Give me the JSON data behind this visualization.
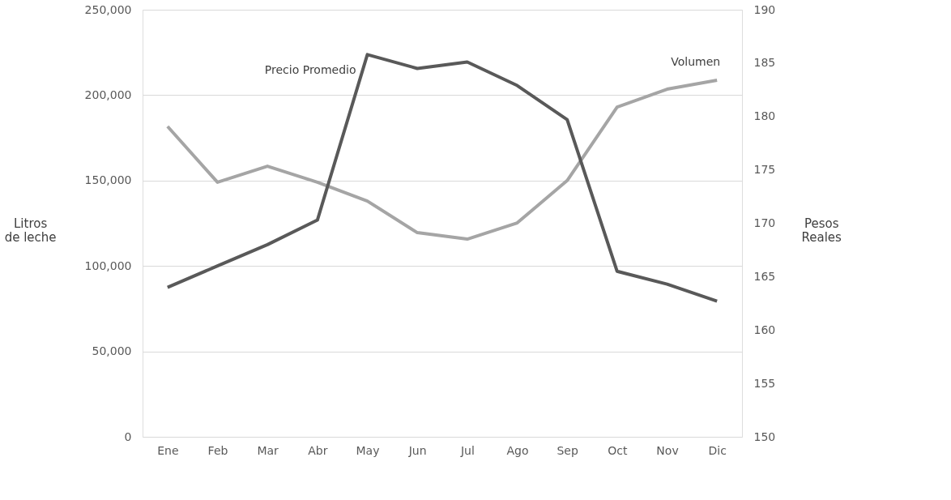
{
  "chart_data": {
    "type": "line",
    "ylabel": "Litros de leche",
    "y2label": "Pesos Reales",
    "categories": [
      "Ene",
      "Feb",
      "Mar",
      "Abr",
      "May",
      "Jun",
      "Jul",
      "Ago",
      "Sep",
      "Oct",
      "Nov",
      "Dic"
    ],
    "series": [
      {
        "name": "Volumen",
        "color": "#a5a5a5",
        "values": [
          181700,
          149000,
          158400,
          149000,
          138000,
          119500,
          115700,
          125200,
          150000,
          193000,
          203500,
          208700
        ]
      },
      {
        "name": "Precio Promedio",
        "color": "#595959",
        "axis": "y2",
        "values": [
          164.0,
          166.0,
          168.0,
          170.3,
          185.8,
          184.5,
          185.1,
          182.9,
          179.7,
          165.5,
          164.3,
          162.7
        ]
      }
    ],
    "ylim": [
      0,
      250000
    ],
    "yticks": [
      0,
      {
        "value": 50000,
        "label": "50,000"
      },
      {
        "value": 100000,
        "label": "100,000"
      },
      {
        "value": 150000,
        "label": "150,000"
      },
      {
        "value": 200000,
        "label": "200,000"
      },
      {
        "value": 250000,
        "label": "250,000"
      }
    ],
    "y2lim": [
      150,
      190
    ],
    "y2ticks": [
      150,
      155,
      160,
      165,
      170,
      175,
      180,
      185,
      190
    ],
    "grid": "y",
    "marker": "none",
    "line_style": "solid"
  }
}
